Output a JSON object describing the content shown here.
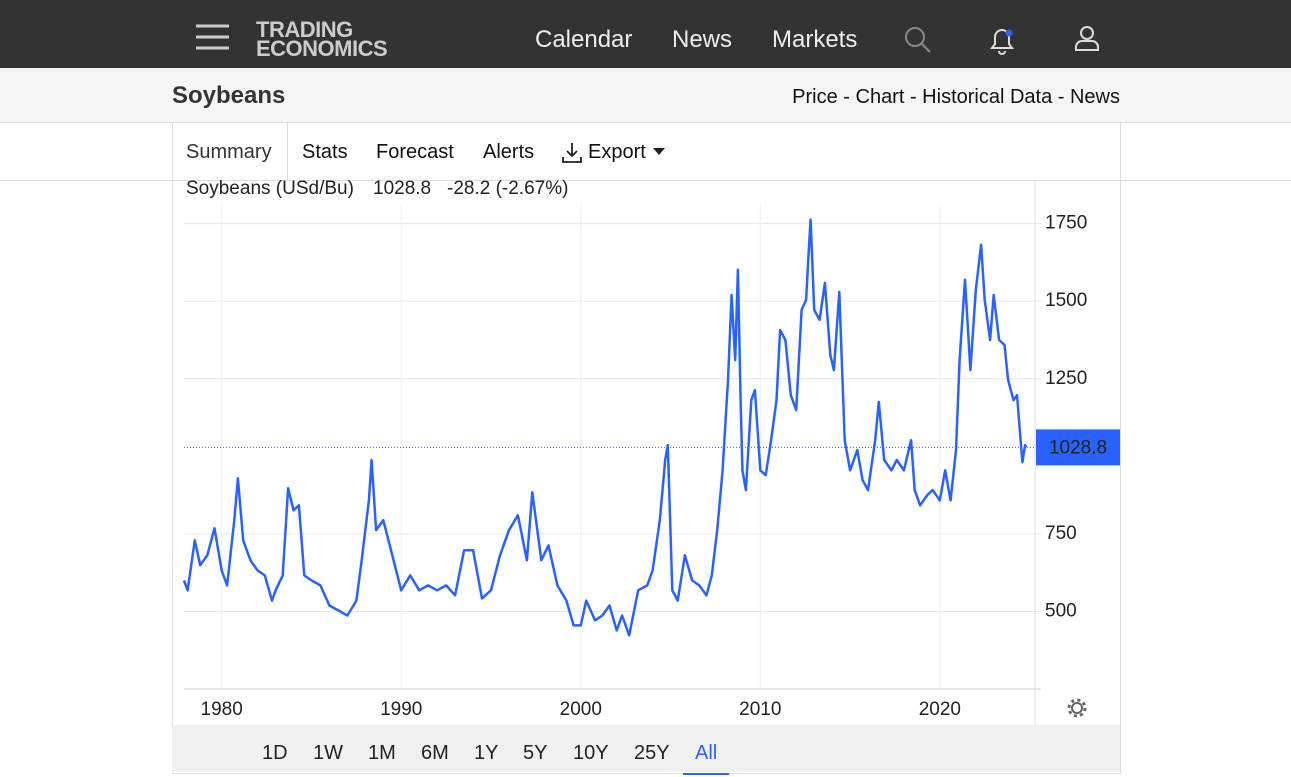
{
  "nav": {
    "logo_top": "TRADING",
    "logo_bottom": "ECONOMICS",
    "items": [
      "Calendar",
      "News",
      "Markets"
    ]
  },
  "header": {
    "title": "Soybeans",
    "links": "Price - Chart - Historical Data - News"
  },
  "tabs": [
    "Summary",
    "Stats",
    "Forecast",
    "Alerts",
    "Export"
  ],
  "ranges": [
    "1D",
    "1W",
    "1M",
    "6M",
    "1Y",
    "5Y",
    "10Y",
    "25Y",
    "All"
  ],
  "selected_range": "All",
  "chart_data": {
    "type": "line",
    "series_label": "Soybeans (USd/Bu)",
    "last_value": 1028.8,
    "change": "-28.2 (-2.67%)",
    "color": "#2962ff",
    "change_color": "#e53935",
    "xlim": [
      1977.9,
      2025.3
    ],
    "xticks": [
      1980,
      1990,
      2000,
      2010,
      2020
    ],
    "ylim": [
      250,
      1810
    ],
    "yticks": [
      500,
      750,
      1250,
      1500,
      1750
    ],
    "grid": true,
    "x": [
      1977.9,
      1978.1,
      1978.5,
      1978.8,
      1979.2,
      1979.6,
      1980.0,
      1980.3,
      1980.7,
      1980.9,
      1981.2,
      1981.6,
      1982.0,
      1982.4,
      1982.8,
      1983.0,
      1983.4,
      1983.7,
      1984.0,
      1984.3,
      1984.6,
      1985.0,
      1985.5,
      1986.0,
      1986.5,
      1987.0,
      1987.5,
      1987.8,
      1988.2,
      1988.35,
      1988.6,
      1989.0,
      1989.5,
      1990.0,
      1990.5,
      1991.0,
      1991.5,
      1992.0,
      1992.5,
      1993.0,
      1993.5,
      1994.0,
      1994.5,
      1995.0,
      1995.5,
      1996.0,
      1996.5,
      1997.0,
      1997.3,
      1997.8,
      1998.2,
      1998.7,
      1999.2,
      1999.6,
      2000.0,
      2000.3,
      2000.8,
      2001.2,
      2001.6,
      2002.0,
      2002.3,
      2002.7,
      2003.2,
      2003.7,
      2004.0,
      2004.4,
      2004.7,
      2004.85,
      2005.1,
      2005.4,
      2005.8,
      2006.2,
      2006.6,
      2007.0,
      2007.3,
      2007.6,
      2007.9,
      2008.2,
      2008.4,
      2008.6,
      2008.75,
      2008.9,
      2009.0,
      2009.2,
      2009.5,
      2009.7,
      2010.0,
      2010.3,
      2010.6,
      2010.9,
      2011.1,
      2011.4,
      2011.7,
      2012.0,
      2012.3,
      2012.55,
      2012.7,
      2012.8,
      2013.0,
      2013.3,
      2013.6,
      2013.9,
      2014.1,
      2014.4,
      2014.7,
      2015.0,
      2015.4,
      2015.7,
      2016.0,
      2016.4,
      2016.6,
      2016.9,
      2017.3,
      2017.6,
      2018.0,
      2018.4,
      2018.6,
      2018.9,
      2019.3,
      2019.6,
      2020.0,
      2020.3,
      2020.6,
      2020.9,
      2021.1,
      2021.4,
      2021.7,
      2022.0,
      2022.3,
      2022.5,
      2022.8,
      2023.0,
      2023.3,
      2023.6,
      2023.8,
      2024.1,
      2024.3,
      2024.5,
      2024.6,
      2024.75,
      2024.8
    ],
    "values": [
      600,
      568,
      729,
      649,
      681,
      768,
      632,
      584,
      794,
      929,
      729,
      665,
      632,
      616,
      535,
      568,
      616,
      897,
      826,
      842,
      616,
      600,
      584,
      519,
      503,
      487,
      535,
      665,
      858,
      988,
      762,
      794,
      681,
      568,
      616,
      568,
      584,
      568,
      584,
      552,
      697,
      697,
      542,
      568,
      681,
      762,
      810,
      665,
      884,
      665,
      713,
      584,
      535,
      455,
      455,
      535,
      471,
      487,
      519,
      439,
      487,
      423,
      568,
      584,
      632,
      794,
      988,
      1036,
      568,
      535,
      681,
      600,
      584,
      552,
      616,
      762,
      955,
      1246,
      1520,
      1310,
      1601,
      1181,
      955,
      891,
      1181,
      1213,
      955,
      939,
      1052,
      1181,
      1407,
      1375,
      1197,
      1149,
      1472,
      1504,
      1666,
      1763,
      1472,
      1440,
      1559,
      1327,
      1278,
      1530,
      1052,
      955,
      1020,
      923,
      891,
      1052,
      1175,
      988,
      955,
      988,
      955,
      1052,
      891,
      842,
      875,
      891,
      858,
      955,
      858,
      1020,
      1310,
      1569,
      1278,
      1536,
      1682,
      1504,
      1375,
      1520,
      1375,
      1359,
      1246,
      1181,
      1197,
      1052,
      981,
      1036,
      1028.8
    ]
  }
}
